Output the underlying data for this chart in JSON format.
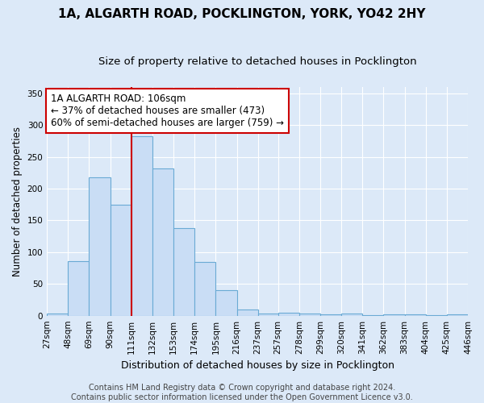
{
  "title1": "1A, ALGARTH ROAD, POCKLINGTON, YORK, YO42 2HY",
  "title2": "Size of property relative to detached houses in Pocklington",
  "xlabel": "Distribution of detached houses by size in Pocklington",
  "ylabel": "Number of detached properties",
  "bar_values": [
    3,
    86,
    218,
    175,
    283,
    232,
    138,
    85,
    40,
    10,
    3,
    5,
    3,
    2,
    3,
    1,
    2,
    2,
    1,
    2
  ],
  "bin_edges": [
    27,
    48,
    69,
    90,
    111,
    132,
    153,
    174,
    195,
    216,
    237,
    257,
    278,
    299,
    320,
    341,
    362,
    383,
    404,
    425,
    446
  ],
  "bin_labels": [
    "27sqm",
    "48sqm",
    "69sqm",
    "90sqm",
    "111sqm",
    "132sqm",
    "153sqm",
    "174sqm",
    "195sqm",
    "216sqm",
    "237sqm",
    "257sqm",
    "278sqm",
    "299sqm",
    "320sqm",
    "341sqm",
    "362sqm",
    "383sqm",
    "404sqm",
    "425sqm",
    "446sqm"
  ],
  "bar_color": "#c9ddf5",
  "bar_edge_color": "#6aaad4",
  "vline_color": "#cc0000",
  "vline_x_index": 4,
  "annotation_text": "1A ALGARTH ROAD: 106sqm\n← 37% of detached houses are smaller (473)\n60% of semi-detached houses are larger (759) →",
  "annotation_box_facecolor": "#ffffff",
  "annotation_box_edgecolor": "#cc0000",
  "ylim": [
    0,
    360
  ],
  "yticks": [
    0,
    50,
    100,
    150,
    200,
    250,
    300,
    350
  ],
  "footnote": "Contains HM Land Registry data © Crown copyright and database right 2024.\nContains public sector information licensed under the Open Government Licence v3.0.",
  "background_color": "#dce9f8",
  "plot_bg_color": "#dce9f8",
  "grid_color": "#ffffff",
  "title1_fontsize": 11,
  "title2_fontsize": 9.5,
  "xlabel_fontsize": 9,
  "ylabel_fontsize": 8.5,
  "tick_fontsize": 7.5,
  "annotation_fontsize": 8.5,
  "footnote_fontsize": 7
}
